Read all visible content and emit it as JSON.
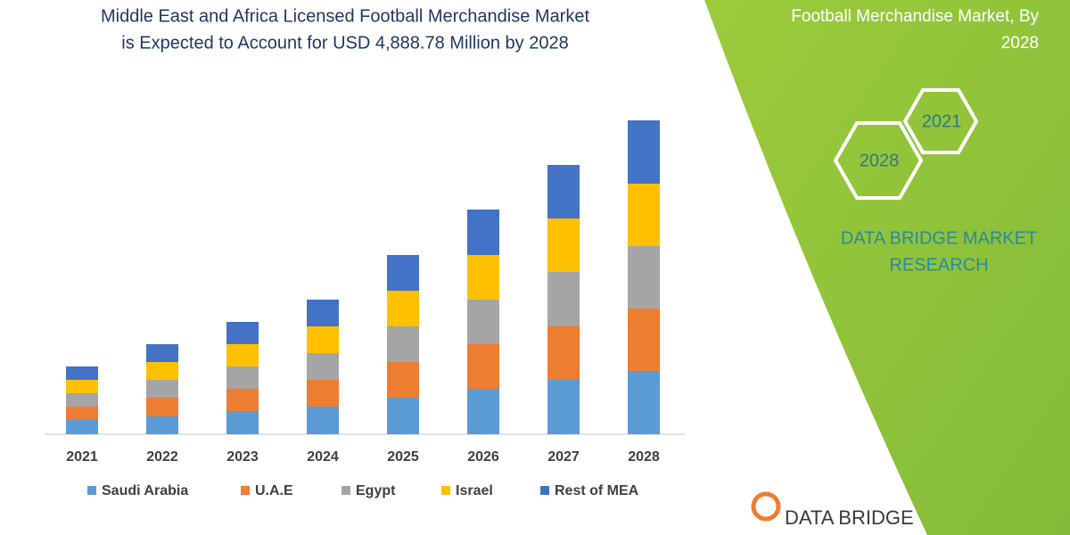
{
  "chart_data": {
    "type": "stacked_bar",
    "title": [
      "Middle East and Africa Licensed Football Merchandise Market",
      "is Expected to Account for USD 4,888.78 Million by 2028"
    ],
    "categories": [
      "2021",
      "2022",
      "2023",
      "2024",
      "2025",
      "2026",
      "2027",
      "2028"
    ],
    "series": [
      {
        "name": "Saudi Arabia",
        "color": "#5b9bd5",
        "values": [
          16,
          20,
          26,
          31,
          41,
          51,
          61,
          71
        ]
      },
      {
        "name": "U.A.E",
        "color": "#ed7d31",
        "values": [
          15,
          21,
          25,
          30,
          40,
          50,
          60,
          70
        ]
      },
      {
        "name": "Egypt",
        "color": "#a5a5a5",
        "values": [
          15,
          20,
          25,
          30,
          40,
          50,
          61,
          70
        ]
      },
      {
        "name": "Israel",
        "color": "#ffc000",
        "values": [
          15,
          20,
          25,
          30,
          40,
          50,
          60,
          70
        ]
      },
      {
        "name": "Rest of MEA",
        "color": "#4472c4",
        "values": [
          15,
          20,
          25,
          30,
          40,
          51,
          60,
          71
        ]
      }
    ],
    "ylim": [
      0,
      360
    ],
    "grid": false,
    "legend": "bottom"
  },
  "side_panel": {
    "title": [
      "Football Merchandise Market, By",
      "2028"
    ],
    "hexagons": [
      "2021",
      "2028"
    ],
    "brand": [
      "DATA BRIDGE MARKET",
      "RESEARCH"
    ]
  },
  "footer_logo": "DATA BRIDGE"
}
